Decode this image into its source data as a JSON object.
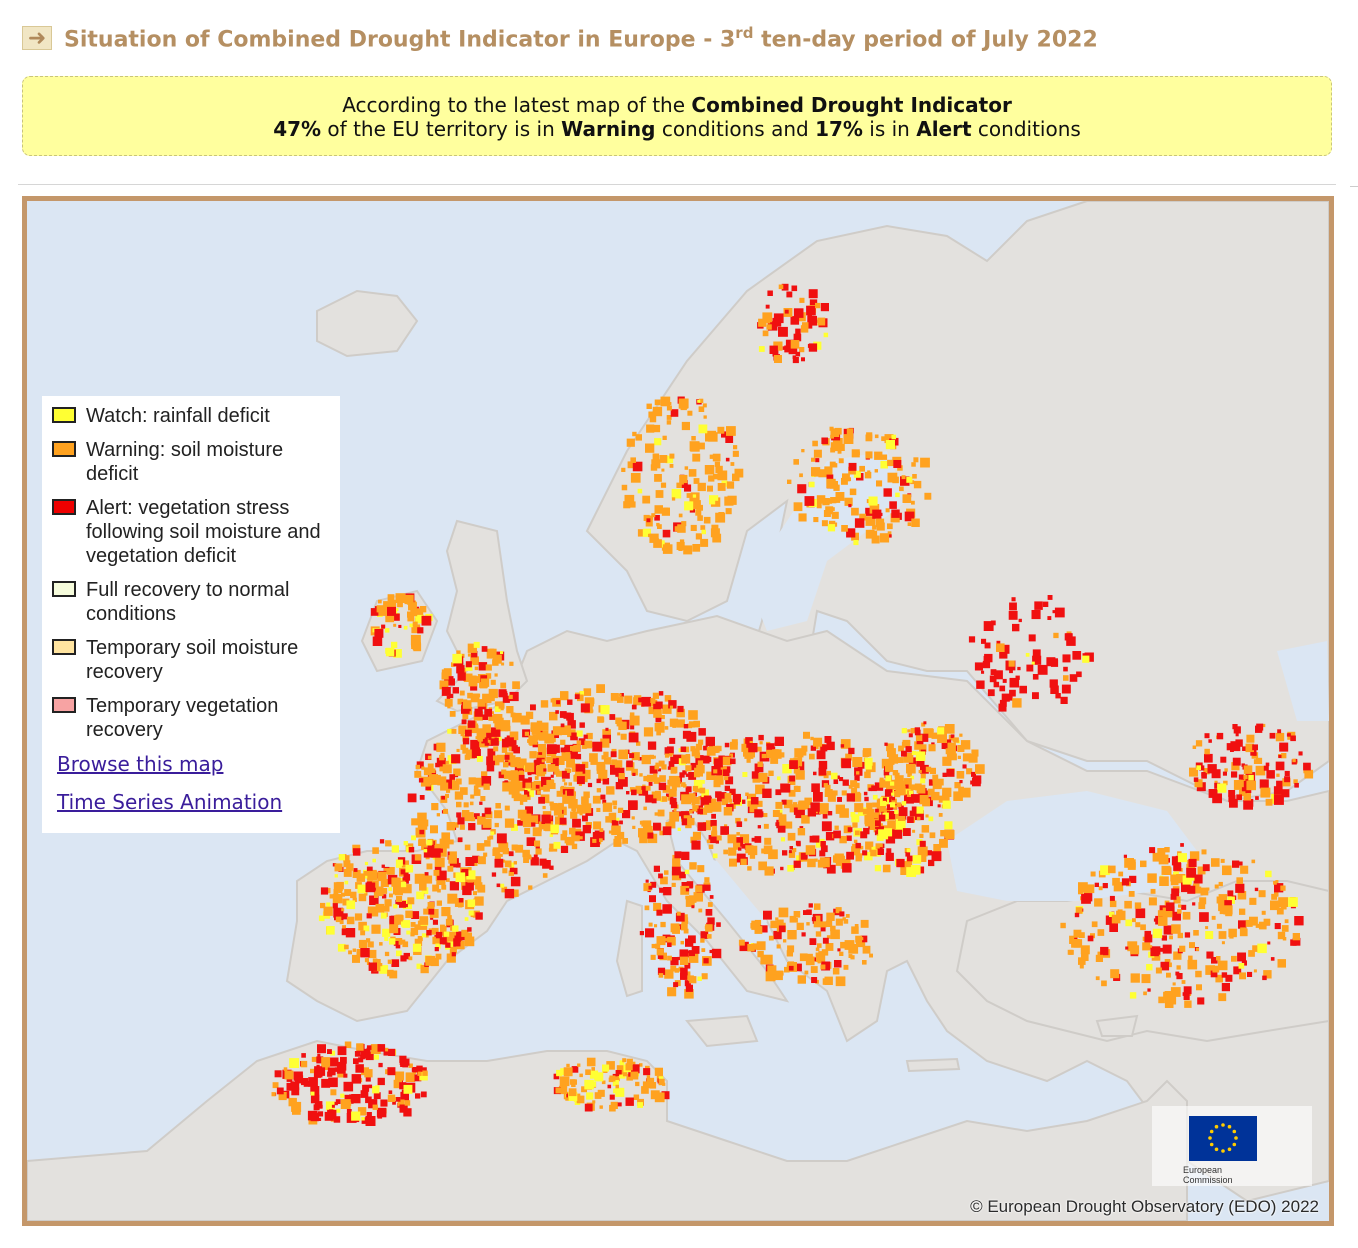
{
  "header": {
    "title_main": "Situation of Combined Drought Indicator in Europe - 3",
    "title_sup": "rd",
    "title_tail": " ten-day period of July 2022",
    "arrow_icon": "right-arrow-icon"
  },
  "banner": {
    "line1_prefix": "According to the latest map of the ",
    "line1_bold": "Combined Drought Indicator",
    "pct_warning": "47%",
    "mid1": " of the EU territory is in ",
    "warning_word": "Warning",
    "mid2": " conditions and ",
    "pct_alert": "17%",
    "mid3": " is in ",
    "alert_word": "Alert",
    "tail": " conditions"
  },
  "legend": {
    "items": [
      {
        "label": "Watch: rainfall deficit",
        "color": "#ffff00"
      },
      {
        "label": "Warning: soil moisture deficit",
        "color": "#ffa500"
      },
      {
        "label": "Alert: vegetation stress following soil moisture and vegetation deficit",
        "color": "#ee0000"
      },
      {
        "label": "Full recovery to normal conditions",
        "color": "#f6fcdc"
      },
      {
        "label": "Temporary soil moisture recovery",
        "color": "#ffe4a0"
      },
      {
        "label": "Temporary vegetation recovery",
        "color": "#f7a3a3"
      }
    ],
    "browse_link": "Browse this map",
    "animation_link": "Time Series Animation"
  },
  "map": {
    "copyright": "© European Drought Observatory (EDO) 2022",
    "logo_text_1": "European",
    "logo_text_2": "Commission",
    "colors": {
      "sea": "#dbe6f3",
      "land": "#e3e1de",
      "border": "#c9c7c4",
      "watch": "#ffff33",
      "warning": "#ffa21f",
      "alert": "#f01010",
      "eu_blue": "#003399",
      "eu_star": "#ffcc00"
    }
  }
}
